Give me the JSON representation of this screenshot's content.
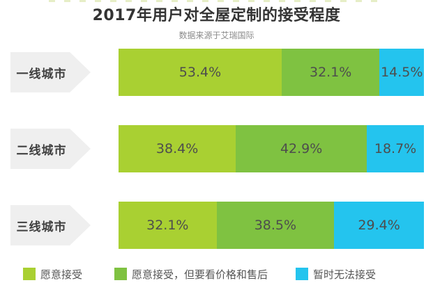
{
  "header": {
    "title": "2017年用户对全屋定制的接受程度",
    "subtitle": "数据来源于艾瑞国际"
  },
  "colors": {
    "accept": "#a9d032",
    "accept_conditional": "#7fc241",
    "reject": "#24c4ee",
    "category_label_bg": "#efefef",
    "title_text": "#333333",
    "bar_value_text": "#4d4d4d"
  },
  "chart_data": {
    "type": "bar",
    "orientation": "horizontal-stacked",
    "title": "2017年用户对全屋定制的接受程度",
    "subtitle": "数据来源于艾瑞国际",
    "categories": [
      "一线城市",
      "二线城市",
      "三线城市"
    ],
    "series": [
      {
        "name": "愿意接受",
        "color": "#a9d032",
        "values": [
          53.4,
          38.4,
          32.1
        ]
      },
      {
        "name": "愿意接受，但要看价格和售后",
        "color": "#7fc241",
        "values": [
          32.1,
          42.9,
          38.5
        ]
      },
      {
        "name": "暂时无法接受",
        "color": "#24c4ee",
        "values": [
          14.5,
          18.7,
          29.4
        ]
      }
    ],
    "value_format": "percent",
    "value_labels": [
      [
        "53.4%",
        "32.1%",
        "14.5%"
      ],
      [
        "38.4%",
        "42.9%",
        "18.7%"
      ],
      [
        "32.1%",
        "38.5%",
        "29.4%"
      ]
    ],
    "xlim": [
      0,
      100
    ],
    "grid": false,
    "legend_position": "bottom"
  }
}
